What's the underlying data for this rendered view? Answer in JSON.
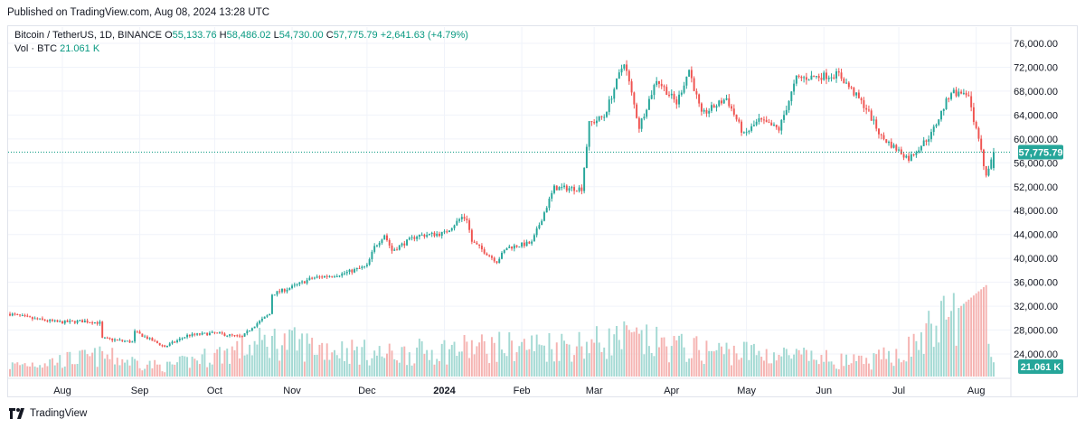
{
  "header": {
    "published": "Published on TradingView.com, Aug 08, 2024 13:28 UTC"
  },
  "legend": {
    "symbol": "Bitcoin / TetherUS, 1D, BINANCE",
    "open_label": "O",
    "open": "55,133.76",
    "high_label": "H",
    "high": "58,486.02",
    "low_label": "L",
    "low": "54,730.00",
    "close_label": "C",
    "close": "57,775.79",
    "change": "+2,641.63 (+4.79%)",
    "volume_label": "Vol · BTC",
    "volume": "21.061 K"
  },
  "footer": {
    "brand": "TradingView"
  },
  "colors": {
    "up": "#26a69a",
    "down": "#ef5350",
    "vol_up": "#a3d9d3",
    "vol_down": "#f5b3b1",
    "grid": "#f0f3fa",
    "price_line": "#089981"
  },
  "chart_data": {
    "type": "candlestick",
    "title": "Bitcoin / TetherUS, 1D, BINANCE",
    "y_axis": {
      "ticks": [
        24000,
        28000,
        32000,
        36000,
        40000,
        44000,
        48000,
        52000,
        56000,
        60000,
        64000,
        68000,
        72000,
        76000
      ],
      "tick_labels": [
        "24,000.00",
        "28,000.00",
        "32,000.00",
        "36,000.00",
        "40,000.00",
        "44,000.00",
        "48,000.00",
        "52,000.00",
        "56,000.00",
        "60,000.00",
        "64,000.00",
        "68,000.00",
        "72,000.00",
        "76,000.00"
      ],
      "scale": "linear"
    },
    "x_axis": {
      "tick_labels": [
        "Aug",
        "Sep",
        "Oct",
        "Nov",
        "Dec",
        "2024",
        "Feb",
        "Mar",
        "Apr",
        "May",
        "Jun",
        "Jul",
        "Aug"
      ],
      "tick_dates": [
        "2023-08-01",
        "2023-09-01",
        "2023-10-01",
        "2023-11-01",
        "2023-12-01",
        "2024-01-01",
        "2024-02-01",
        "2024-03-01",
        "2024-04-01",
        "2024-05-01",
        "2024-06-01",
        "2024-07-01",
        "2024-08-01"
      ],
      "bold": [
        "2024"
      ]
    },
    "date_range": [
      "2023-07-11",
      "2024-08-08"
    ],
    "last_price": 57775.79,
    "last_price_label": "57,775.79",
    "last_volume_label": "21.061 K",
    "price_path": [
      [
        "2023-07-11",
        30700
      ],
      [
        "2023-07-20",
        29900
      ],
      [
        "2023-07-31",
        29300
      ],
      [
        "2023-08-10",
        29500
      ],
      [
        "2023-08-16",
        29200
      ],
      [
        "2023-08-17",
        26600
      ],
      [
        "2023-08-29",
        26000
      ],
      [
        "2023-08-30",
        27700
      ],
      [
        "2023-09-11",
        25200
      ],
      [
        "2023-09-20",
        27100
      ],
      [
        "2023-10-01",
        27500
      ],
      [
        "2023-10-12",
        26800
      ],
      [
        "2023-10-16",
        28500
      ],
      [
        "2023-10-23",
        30700
      ],
      [
        "2023-10-24",
        34000
      ],
      [
        "2023-11-01",
        35200
      ],
      [
        "2023-11-09",
        36700
      ],
      [
        "2023-11-21",
        37400
      ],
      [
        "2023-12-01",
        38700
      ],
      [
        "2023-12-04",
        41900
      ],
      [
        "2023-12-08",
        44000
      ],
      [
        "2023-12-11",
        41300
      ],
      [
        "2023-12-21",
        43800
      ],
      [
        "2024-01-01",
        44200
      ],
      [
        "2024-01-08",
        46900
      ],
      [
        "2024-01-10",
        46600
      ],
      [
        "2024-01-12",
        42800
      ],
      [
        "2024-01-22",
        39500
      ],
      [
        "2024-01-26",
        41800
      ],
      [
        "2024-02-05",
        42600
      ],
      [
        "2024-02-14",
        51800
      ],
      [
        "2024-02-25",
        51700
      ],
      [
        "2024-02-28",
        62500
      ],
      [
        "2024-03-05",
        63800
      ],
      [
        "2024-03-13",
        73000
      ],
      [
        "2024-03-19",
        62000
      ],
      [
        "2024-03-26",
        70000
      ],
      [
        "2024-04-03",
        66000
      ],
      [
        "2024-04-08",
        71600
      ],
      [
        "2024-04-13",
        64000
      ],
      [
        "2024-04-23",
        66800
      ],
      [
        "2024-04-30",
        60600
      ],
      [
        "2024-05-06",
        63100
      ],
      [
        "2024-05-14",
        61600
      ],
      [
        "2024-05-21",
        70100
      ],
      [
        "2024-06-07",
        70800
      ],
      [
        "2024-06-18",
        65100
      ],
      [
        "2024-06-24",
        60300
      ],
      [
        "2024-07-05",
        56700
      ],
      [
        "2024-07-14",
        60800
      ],
      [
        "2024-07-22",
        68000
      ],
      [
        "2024-07-29",
        66900
      ],
      [
        "2024-08-05",
        54000
      ],
      [
        "2024-08-08",
        57800
      ]
    ],
    "volume_path_btc_k": [
      [
        "2023-07-11",
        16
      ],
      [
        "2023-08-17",
        30
      ],
      [
        "2023-09-11",
        14
      ],
      [
        "2023-10-24",
        52
      ],
      [
        "2023-12-08",
        32
      ],
      [
        "2024-01-11",
        42
      ],
      [
        "2024-02-28",
        48
      ],
      [
        "2024-03-13",
        55
      ],
      [
        "2024-04-13",
        38
      ],
      [
        "2024-05-01",
        36
      ],
      [
        "2024-06-18",
        20
      ],
      [
        "2024-07-05",
        40
      ],
      [
        "2024-08-05",
        135
      ],
      [
        "2024-08-08",
        21.061
      ]
    ]
  }
}
